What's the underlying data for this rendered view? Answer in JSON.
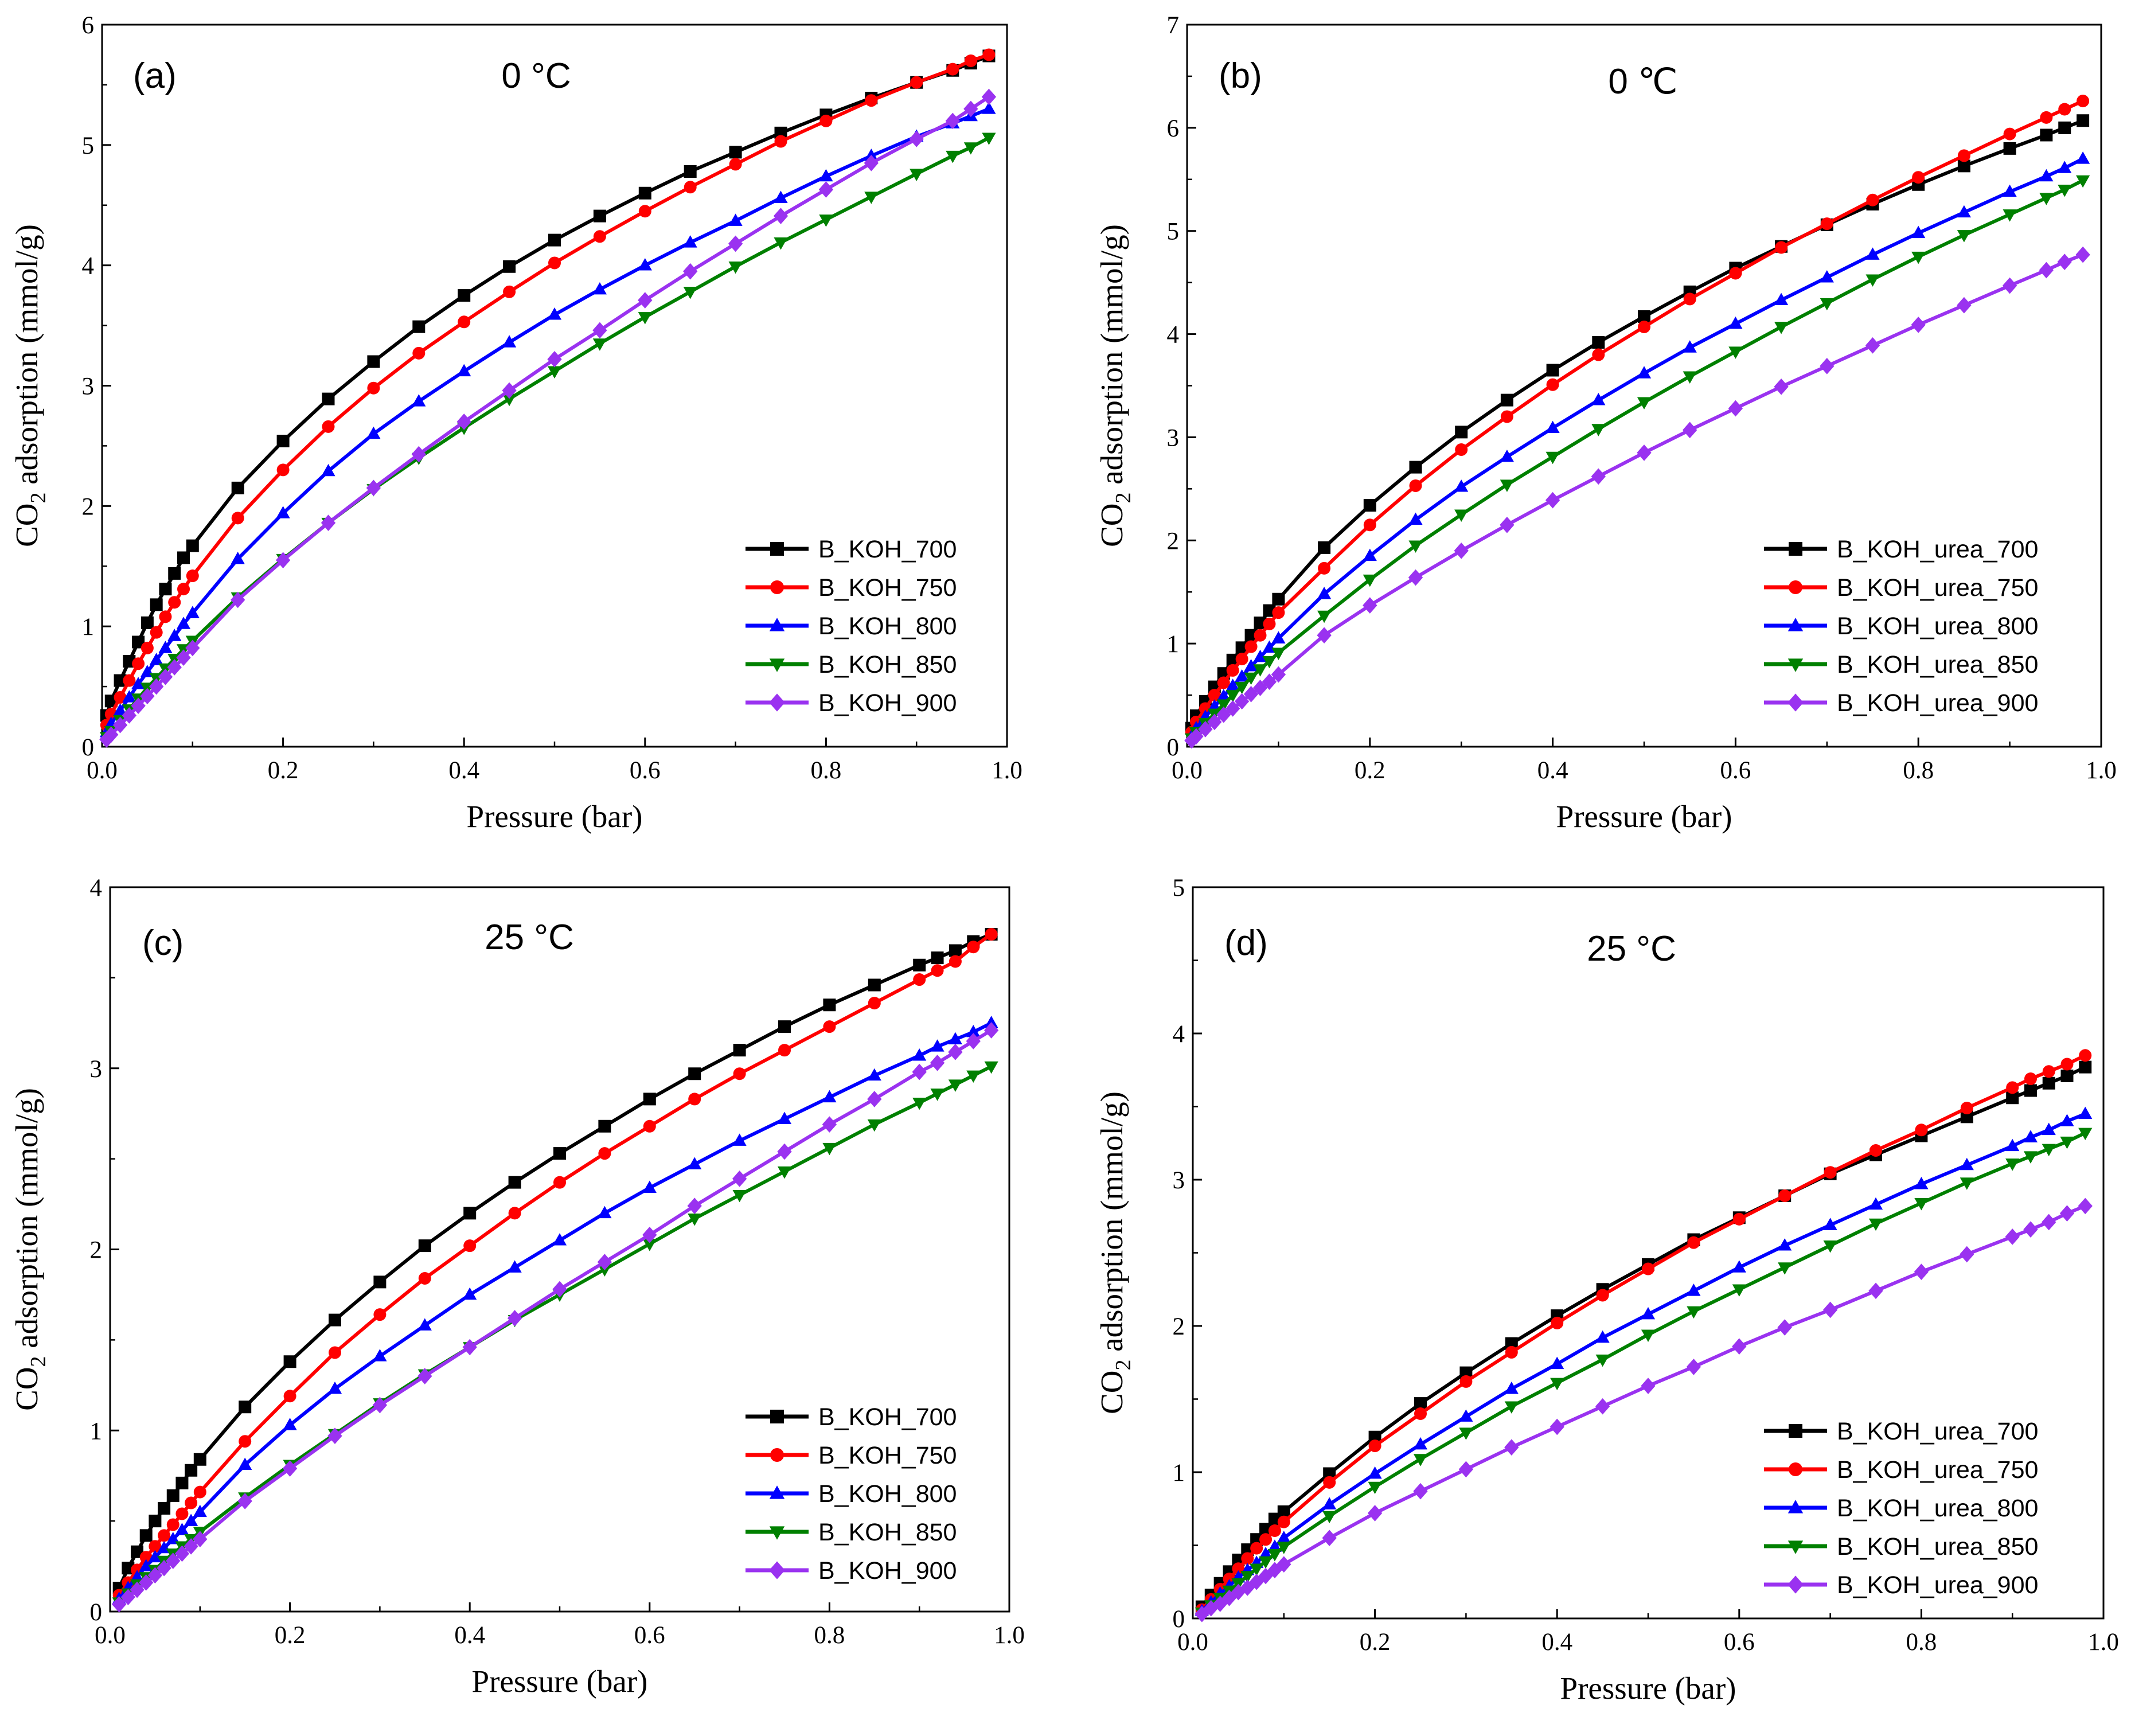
{
  "colors": {
    "s700": "#000000",
    "s750": "#ff0000",
    "s800": "#0000ff",
    "s850": "#008000",
    "s900": "#9a32f0"
  },
  "chart_data": [
    {
      "type": "line",
      "panel_label": "(a)",
      "temperature": "0 °C",
      "xlabel": "Pressure (bar)",
      "ylabel": "CO₂ adsorption (mmol/g)",
      "xlim": [
        0,
        1.0
      ],
      "ylim": [
        0,
        6
      ],
      "xticks": [
        "0.0",
        "0.2",
        "0.4",
        "0.6",
        "0.8",
        "1.0"
      ],
      "yticks": [
        "0",
        "1",
        "2",
        "3",
        "4",
        "5",
        "6"
      ],
      "legend_position": "bottom-right",
      "x": [
        0.005,
        0.01,
        0.02,
        0.03,
        0.04,
        0.05,
        0.06,
        0.07,
        0.08,
        0.09,
        0.1,
        0.15,
        0.2,
        0.25,
        0.3,
        0.35,
        0.4,
        0.45,
        0.5,
        0.55,
        0.6,
        0.65,
        0.7,
        0.75,
        0.8,
        0.85,
        0.9,
        0.94,
        0.96,
        0.98
      ],
      "series": [
        {
          "name": "B_KOH_700",
          "marker": "square",
          "values": [
            0.26,
            0.38,
            0.55,
            0.71,
            0.87,
            1.03,
            1.18,
            1.31,
            1.44,
            1.57,
            1.67,
            2.15,
            2.54,
            2.89,
            3.2,
            3.49,
            3.75,
            3.99,
            4.21,
            4.41,
            4.6,
            4.78,
            4.94,
            5.1,
            5.25,
            5.39,
            5.52,
            5.62,
            5.68,
            5.74
          ]
        },
        {
          "name": "B_KOH_750",
          "marker": "circle",
          "values": [
            0.18,
            0.27,
            0.41,
            0.55,
            0.69,
            0.82,
            0.95,
            1.08,
            1.2,
            1.31,
            1.42,
            1.9,
            2.3,
            2.66,
            2.98,
            3.27,
            3.53,
            3.78,
            4.02,
            4.24,
            4.45,
            4.65,
            4.84,
            5.03,
            5.2,
            5.37,
            5.52,
            5.63,
            5.7,
            5.75
          ]
        },
        {
          "name": "B_KOH_800",
          "marker": "triangle-up",
          "values": [
            0.12,
            0.19,
            0.3,
            0.41,
            0.52,
            0.62,
            0.72,
            0.82,
            0.92,
            1.02,
            1.11,
            1.56,
            1.94,
            2.29,
            2.6,
            2.87,
            3.12,
            3.36,
            3.59,
            3.8,
            4.0,
            4.19,
            4.37,
            4.56,
            4.74,
            4.91,
            5.07,
            5.18,
            5.24,
            5.3
          ]
        },
        {
          "name": "B_KOH_850",
          "marker": "triangle-down",
          "values": [
            0.08,
            0.13,
            0.22,
            0.31,
            0.4,
            0.49,
            0.57,
            0.65,
            0.73,
            0.81,
            0.88,
            1.24,
            1.56,
            1.86,
            2.14,
            2.4,
            2.65,
            2.89,
            3.12,
            3.35,
            3.57,
            3.78,
            3.99,
            4.19,
            4.38,
            4.57,
            4.76,
            4.91,
            4.98,
            5.06
          ]
        },
        {
          "name": "B_KOH_900",
          "marker": "diamond",
          "values": [
            0.06,
            0.1,
            0.18,
            0.26,
            0.34,
            0.42,
            0.5,
            0.58,
            0.66,
            0.74,
            0.82,
            1.22,
            1.55,
            1.86,
            2.15,
            2.43,
            2.7,
            2.96,
            3.22,
            3.46,
            3.71,
            3.95,
            4.18,
            4.41,
            4.63,
            4.85,
            5.05,
            5.2,
            5.3,
            5.4
          ]
        }
      ]
    },
    {
      "type": "line",
      "panel_label": "(b)",
      "temperature": "0 ℃",
      "xlabel": "Pressure (bar)",
      "ylabel": "CO₂ adsorption (mmol/g)",
      "xlim": [
        0,
        1.0
      ],
      "ylim": [
        0,
        7
      ],
      "xticks": [
        "0.0",
        "0.2",
        "0.4",
        "0.6",
        "0.8",
        "1.0"
      ],
      "yticks": [
        "0",
        "1",
        "2",
        "3",
        "4",
        "5",
        "6",
        "7"
      ],
      "legend_position": "bottom-right",
      "x": [
        0.005,
        0.01,
        0.02,
        0.03,
        0.04,
        0.05,
        0.06,
        0.07,
        0.08,
        0.09,
        0.1,
        0.15,
        0.2,
        0.25,
        0.3,
        0.35,
        0.4,
        0.45,
        0.5,
        0.55,
        0.6,
        0.65,
        0.7,
        0.75,
        0.8,
        0.85,
        0.9,
        0.94,
        0.96,
        0.98
      ],
      "series": [
        {
          "name": "B_KOH_urea_700",
          "marker": "square",
          "values": [
            0.18,
            0.3,
            0.44,
            0.58,
            0.71,
            0.84,
            0.96,
            1.08,
            1.2,
            1.32,
            1.43,
            1.93,
            2.34,
            2.71,
            3.05,
            3.36,
            3.65,
            3.92,
            4.17,
            4.41,
            4.64,
            4.85,
            5.06,
            5.26,
            5.45,
            5.63,
            5.8,
            5.93,
            6.0,
            6.07
          ]
        },
        {
          "name": "B_KOH_urea_750",
          "marker": "circle",
          "values": [
            0.14,
            0.24,
            0.37,
            0.5,
            0.62,
            0.74,
            0.85,
            0.97,
            1.08,
            1.19,
            1.3,
            1.73,
            2.15,
            2.53,
            2.88,
            3.2,
            3.51,
            3.8,
            4.07,
            4.34,
            4.59,
            4.84,
            5.07,
            5.3,
            5.52,
            5.73,
            5.94,
            6.1,
            6.18,
            6.26
          ]
        },
        {
          "name": "B_KOH_urea_800",
          "marker": "triangle-up",
          "values": [
            0.1,
            0.18,
            0.29,
            0.39,
            0.49,
            0.59,
            0.68,
            0.78,
            0.87,
            0.96,
            1.05,
            1.48,
            1.85,
            2.2,
            2.52,
            2.81,
            3.09,
            3.36,
            3.62,
            3.87,
            4.1,
            4.33,
            4.55,
            4.77,
            4.98,
            5.18,
            5.38,
            5.53,
            5.61,
            5.7
          ]
        },
        {
          "name": "B_KOH_urea_850",
          "marker": "triangle-down",
          "values": [
            0.08,
            0.14,
            0.23,
            0.32,
            0.41,
            0.5,
            0.58,
            0.67,
            0.75,
            0.83,
            0.91,
            1.27,
            1.62,
            1.95,
            2.25,
            2.54,
            2.81,
            3.08,
            3.34,
            3.59,
            3.83,
            4.07,
            4.3,
            4.53,
            4.75,
            4.96,
            5.16,
            5.32,
            5.4,
            5.49
          ]
        },
        {
          "name": "B_KOH_urea_900",
          "marker": "diamond",
          "values": [
            0.06,
            0.1,
            0.17,
            0.24,
            0.31,
            0.37,
            0.44,
            0.51,
            0.57,
            0.63,
            0.7,
            1.08,
            1.37,
            1.64,
            1.9,
            2.15,
            2.39,
            2.62,
            2.85,
            3.07,
            3.28,
            3.49,
            3.69,
            3.89,
            4.09,
            4.28,
            4.47,
            4.62,
            4.7,
            4.77
          ]
        }
      ]
    },
    {
      "type": "line",
      "panel_label": "(c)",
      "temperature": "25 °C",
      "xlabel": "Pressure (bar)",
      "ylabel": "CO₂ adsorption (mmol/g)",
      "xlim": [
        0,
        1.0
      ],
      "ylim": [
        0,
        4
      ],
      "xticks": [
        "0.0",
        "0.2",
        "0.4",
        "0.6",
        "0.8",
        "1.0"
      ],
      "yticks": [
        "0",
        "1",
        "2",
        "3",
        "4"
      ],
      "legend_position": "bottom-right",
      "x": [
        0.01,
        0.02,
        0.03,
        0.04,
        0.05,
        0.06,
        0.07,
        0.08,
        0.09,
        0.1,
        0.15,
        0.2,
        0.25,
        0.3,
        0.35,
        0.4,
        0.45,
        0.5,
        0.55,
        0.6,
        0.65,
        0.7,
        0.75,
        0.8,
        0.85,
        0.9,
        0.92,
        0.94,
        0.96,
        0.98
      ],
      "series": [
        {
          "name": "B_KOH_700",
          "marker": "square",
          "values": [
            0.13,
            0.24,
            0.33,
            0.42,
            0.5,
            0.57,
            0.64,
            0.71,
            0.78,
            0.84,
            1.13,
            1.38,
            1.61,
            1.82,
            2.02,
            2.2,
            2.37,
            2.53,
            2.68,
            2.83,
            2.97,
            3.1,
            3.23,
            3.35,
            3.46,
            3.57,
            3.61,
            3.65,
            3.7,
            3.74
          ]
        },
        {
          "name": "B_KOH_750",
          "marker": "circle",
          "values": [
            0.09,
            0.16,
            0.23,
            0.3,
            0.36,
            0.42,
            0.48,
            0.54,
            0.6,
            0.66,
            0.94,
            1.19,
            1.43,
            1.64,
            1.84,
            2.02,
            2.2,
            2.37,
            2.53,
            2.68,
            2.83,
            2.97,
            3.1,
            3.23,
            3.36,
            3.49,
            3.54,
            3.59,
            3.67,
            3.74
          ]
        },
        {
          "name": "B_KOH_800",
          "marker": "triangle-up",
          "values": [
            0.07,
            0.13,
            0.19,
            0.25,
            0.3,
            0.35,
            0.4,
            0.45,
            0.5,
            0.55,
            0.81,
            1.03,
            1.23,
            1.41,
            1.58,
            1.75,
            1.9,
            2.05,
            2.2,
            2.34,
            2.47,
            2.6,
            2.72,
            2.84,
            2.96,
            3.07,
            3.12,
            3.16,
            3.2,
            3.25
          ]
        },
        {
          "name": "B_KOH_850",
          "marker": "triangle-down",
          "values": [
            0.05,
            0.1,
            0.15,
            0.19,
            0.23,
            0.28,
            0.32,
            0.36,
            0.4,
            0.44,
            0.63,
            0.81,
            0.98,
            1.15,
            1.31,
            1.46,
            1.61,
            1.75,
            1.89,
            2.03,
            2.17,
            2.3,
            2.43,
            2.56,
            2.69,
            2.81,
            2.86,
            2.91,
            2.96,
            3.01
          ]
        },
        {
          "name": "B_KOH_900",
          "marker": "diamond",
          "values": [
            0.04,
            0.08,
            0.12,
            0.16,
            0.2,
            0.24,
            0.28,
            0.32,
            0.36,
            0.4,
            0.61,
            0.79,
            0.97,
            1.14,
            1.3,
            1.46,
            1.62,
            1.78,
            1.93,
            2.08,
            2.24,
            2.39,
            2.54,
            2.69,
            2.83,
            2.98,
            3.03,
            3.09,
            3.15,
            3.21
          ]
        }
      ]
    },
    {
      "type": "line",
      "panel_label": "(d)",
      "temperature": "25 °C",
      "xlabel": "Pressure (bar)",
      "ylabel": "CO₂ adsorption (mmol/g)",
      "xlim": [
        0,
        1.0
      ],
      "ylim": [
        0,
        5
      ],
      "xticks": [
        "0.0",
        "0.2",
        "0.4",
        "0.6",
        "0.8",
        "1.0"
      ],
      "yticks": [
        "0",
        "1",
        "2",
        "3",
        "4",
        "5"
      ],
      "legend_position": "bottom-right",
      "x": [
        0.01,
        0.02,
        0.03,
        0.04,
        0.05,
        0.06,
        0.07,
        0.08,
        0.09,
        0.1,
        0.15,
        0.2,
        0.25,
        0.3,
        0.35,
        0.4,
        0.45,
        0.5,
        0.55,
        0.6,
        0.65,
        0.7,
        0.75,
        0.8,
        0.85,
        0.9,
        0.92,
        0.94,
        0.96,
        0.98
      ],
      "series": [
        {
          "name": "B_KOH_urea_700",
          "marker": "square",
          "values": [
            0.08,
            0.16,
            0.24,
            0.32,
            0.4,
            0.47,
            0.54,
            0.61,
            0.68,
            0.73,
            0.99,
            1.24,
            1.47,
            1.68,
            1.88,
            2.07,
            2.25,
            2.42,
            2.59,
            2.74,
            2.89,
            3.04,
            3.17,
            3.3,
            3.43,
            3.56,
            3.61,
            3.66,
            3.71,
            3.77
          ]
        },
        {
          "name": "B_KOH_urea_750",
          "marker": "circle",
          "values": [
            0.06,
            0.13,
            0.2,
            0.27,
            0.34,
            0.41,
            0.48,
            0.54,
            0.6,
            0.66,
            0.93,
            1.18,
            1.4,
            1.62,
            1.82,
            2.02,
            2.21,
            2.39,
            2.57,
            2.73,
            2.89,
            3.05,
            3.2,
            3.34,
            3.49,
            3.63,
            3.69,
            3.74,
            3.79,
            3.85
          ]
        },
        {
          "name": "B_KOH_urea_800",
          "marker": "triangle-up",
          "values": [
            0.05,
            0.11,
            0.17,
            0.22,
            0.28,
            0.33,
            0.38,
            0.44,
            0.49,
            0.55,
            0.78,
            0.99,
            1.19,
            1.38,
            1.57,
            1.74,
            1.92,
            2.08,
            2.24,
            2.4,
            2.55,
            2.69,
            2.83,
            2.97,
            3.1,
            3.23,
            3.29,
            3.34,
            3.4,
            3.45
          ]
        },
        {
          "name": "B_KOH_urea_850",
          "marker": "triangle-down",
          "values": [
            0.04,
            0.09,
            0.14,
            0.19,
            0.24,
            0.29,
            0.34,
            0.39,
            0.44,
            0.49,
            0.7,
            0.9,
            1.09,
            1.27,
            1.45,
            1.61,
            1.77,
            1.94,
            2.1,
            2.25,
            2.4,
            2.55,
            2.7,
            2.84,
            2.98,
            3.11,
            3.16,
            3.21,
            3.26,
            3.32
          ]
        },
        {
          "name": "B_KOH_urea_900",
          "marker": "diamond",
          "values": [
            0.03,
            0.07,
            0.1,
            0.14,
            0.18,
            0.21,
            0.25,
            0.29,
            0.33,
            0.37,
            0.55,
            0.72,
            0.87,
            1.02,
            1.17,
            1.31,
            1.45,
            1.59,
            1.72,
            1.86,
            1.99,
            2.11,
            2.24,
            2.37,
            2.49,
            2.61,
            2.66,
            2.71,
            2.77,
            2.82
          ]
        }
      ]
    }
  ]
}
